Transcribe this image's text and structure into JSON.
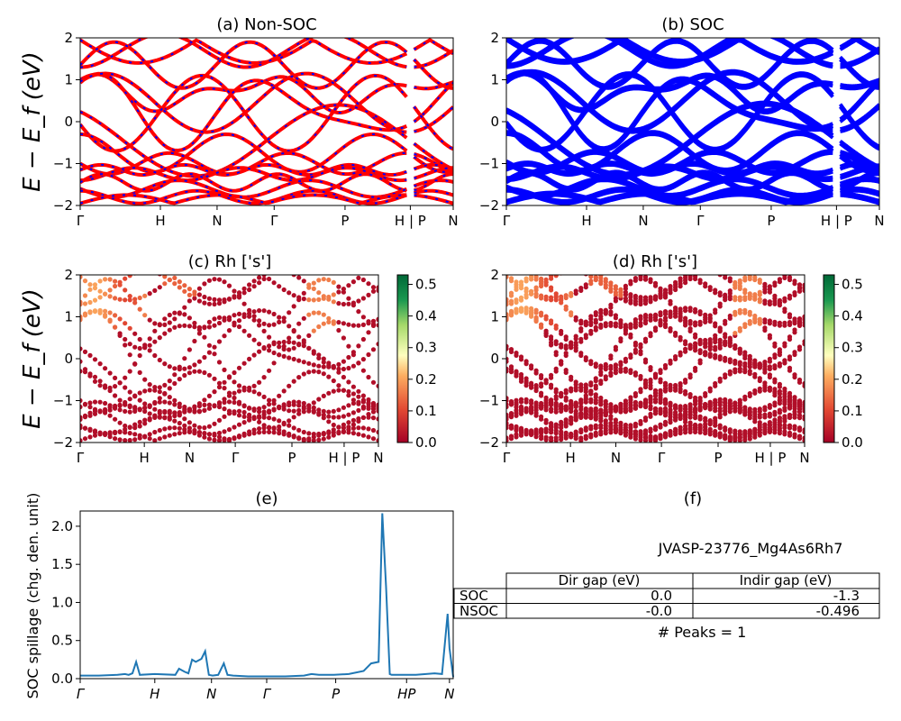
{
  "figure": {
    "material_id": "JVASP-23776_Mg4As6Rh7",
    "peaks_text": "# Peaks = 1",
    "ylabel_energy": "E − E_f (eV)"
  },
  "chart_data": [
    {
      "id": "a",
      "type": "line",
      "title": "(a) Non-SOC",
      "ylim": [
        -2,
        2
      ],
      "yticks": [
        "2",
        "1",
        "0",
        "−1",
        "−2"
      ],
      "kpoint_labels": [
        "Γ",
        "H",
        "N",
        "Γ",
        "P",
        "H | P",
        "N"
      ],
      "kpoint_positions": [
        0,
        0.215,
        0.367,
        0.52,
        0.71,
        0.885,
        1.0
      ],
      "series": [
        {
          "color": "#ff0000",
          "dash_color": "#0000ff"
        }
      ]
    },
    {
      "id": "b",
      "type": "line",
      "title": "(b) SOC",
      "ylim": [
        -2,
        2
      ],
      "yticks": [
        "2",
        "1",
        "0",
        "−1",
        "−2"
      ],
      "kpoint_labels": [
        "Γ",
        "H",
        "N",
        "Γ",
        "P",
        "H | P",
        "N"
      ],
      "kpoint_positions": [
        0,
        0.215,
        0.367,
        0.52,
        0.71,
        0.885,
        1.0
      ],
      "series": [
        {
          "color": "#0000ff"
        }
      ]
    },
    {
      "id": "c",
      "type": "scatter",
      "title": "(c)  Rh ['s']",
      "ylim": [
        -2,
        2
      ],
      "yticks": [
        "2",
        "1",
        "0",
        "−1",
        "−2"
      ],
      "kpoint_labels": [
        "Γ",
        "H",
        "N",
        "Γ",
        "P",
        "H | P",
        "N"
      ],
      "kpoint_positions": [
        0,
        0.215,
        0.367,
        0.52,
        0.71,
        0.885,
        1.0
      ],
      "colorbar": {
        "ticks": [
          "0.5",
          "0.4",
          "0.3",
          "0.2",
          "0.1",
          "0.0"
        ],
        "range": [
          0,
          0.53
        ]
      }
    },
    {
      "id": "d",
      "type": "scatter",
      "title": "(d) Rh ['s']",
      "ylim": [
        -2,
        2
      ],
      "yticks": [
        "2",
        "1",
        "0",
        "−1",
        "−2"
      ],
      "kpoint_labels": [
        "Γ",
        "H",
        "N",
        "Γ",
        "P",
        "H | P",
        "N"
      ],
      "kpoint_positions": [
        0,
        0.215,
        0.367,
        0.52,
        0.71,
        0.885,
        1.0
      ],
      "colorbar": {
        "ticks": [
          "0.5",
          "0.4",
          "0.3",
          "0.2",
          "0.1",
          "0.0"
        ],
        "range": [
          0,
          0.53
        ]
      }
    },
    {
      "id": "e",
      "type": "line",
      "title": "(e)",
      "ylabel": "SOC spillage (chg. den. unit)",
      "ylim": [
        0,
        2.2
      ],
      "yticks": [
        "2.0",
        "1.5",
        "1.0",
        "0.5",
        "0.0"
      ],
      "ytick_values": [
        2.0,
        1.5,
        1.0,
        0.5,
        0.0
      ],
      "kpoint_labels": [
        "Γ",
        "H",
        "N",
        "Γ",
        "P",
        "HP",
        "N"
      ],
      "kpoint_positions": [
        0,
        0.2,
        0.352,
        0.5,
        0.685,
        0.875,
        0.99
      ],
      "series": [
        {
          "color": "#1f77b4",
          "x": [
            0,
            0.05,
            0.1,
            0.12,
            0.13,
            0.14,
            0.15,
            0.16,
            0.2,
            0.255,
            0.265,
            0.28,
            0.29,
            0.3,
            0.31,
            0.325,
            0.335,
            0.345,
            0.355,
            0.37,
            0.385,
            0.395,
            0.41,
            0.45,
            0.55,
            0.6,
            0.62,
            0.64,
            0.68,
            0.72,
            0.76,
            0.78,
            0.8,
            0.81,
            0.82,
            0.83,
            0.835,
            0.845,
            0.9,
            0.95,
            0.97,
            0.985,
            0.99,
            1.0
          ],
          "y": [
            0.04,
            0.04,
            0.05,
            0.06,
            0.05,
            0.07,
            0.22,
            0.05,
            0.06,
            0.05,
            0.13,
            0.09,
            0.07,
            0.25,
            0.22,
            0.26,
            0.36,
            0.05,
            0.04,
            0.05,
            0.2,
            0.05,
            0.04,
            0.03,
            0.03,
            0.04,
            0.06,
            0.05,
            0.05,
            0.06,
            0.1,
            0.2,
            0.22,
            2.17,
            1.2,
            0.06,
            0.05,
            0.05,
            0.05,
            0.07,
            0.06,
            0.85,
            0.4,
            0.02
          ]
        }
      ]
    },
    {
      "id": "f",
      "type": "table",
      "title": "(f)",
      "columns": [
        "",
        "Dir gap (eV)",
        "Indir gap (eV)"
      ],
      "rows": [
        [
          "SOC",
          "0.0",
          "-1.3"
        ],
        [
          "NSOC",
          "-0.0",
          "-0.496"
        ]
      ]
    }
  ]
}
